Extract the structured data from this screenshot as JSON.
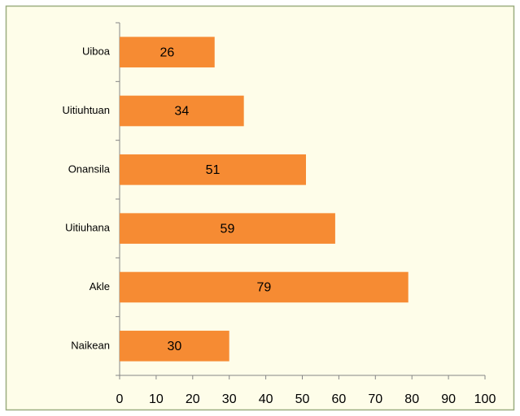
{
  "chart_data": {
    "type": "bar",
    "orientation": "horizontal",
    "categories": [
      "Uiboa",
      "Uitiuhtuan",
      "Onansila",
      "Uitiuhana",
      "Akle",
      "Naikean"
    ],
    "values": [
      26,
      34,
      51,
      59,
      79,
      30
    ],
    "color": "#f68b33",
    "xlim": [
      0,
      100
    ],
    "xticks": [
      0,
      10,
      20,
      30,
      40,
      50,
      60,
      70,
      80,
      90,
      100
    ],
    "grid": false
  }
}
